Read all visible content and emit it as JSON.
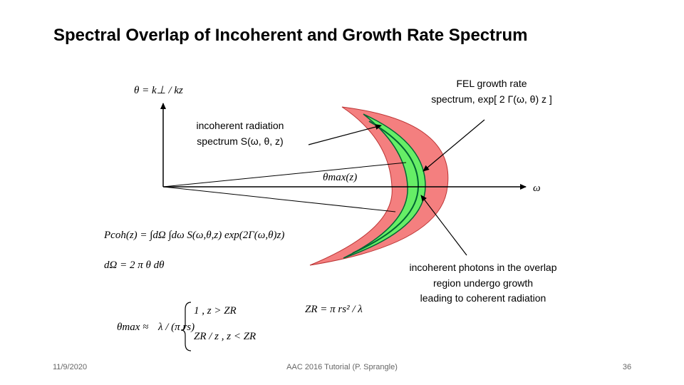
{
  "title": "Spectral Overlap of Incoherent and Growth Rate Spectrum",
  "diagram": {
    "axis_y_label": "θ = k⊥ / kz",
    "axis_x_label": "ω",
    "theta_max_label": "θmax(z)",
    "growth_annotation": [
      "FEL growth rate",
      "spectrum, exp[ 2 Γ(ω, θ) z ]"
    ],
    "incoherent_annotation": [
      "incoherent radiation",
      "spectrum S(ω, θ, z)"
    ],
    "overlap_annotation": [
      "incoherent photons in the overlap",
      "region undergo growth",
      "leading to coherent radiation"
    ]
  },
  "equations": {
    "pcoh": "Pcoh(z) = ∫dΩ ∫dω S(ω,θ,z) exp(2Γ(ω,θ)z)",
    "domega": "dΩ  =  2 π θ dθ",
    "zr": "ZR = π rs² / λ",
    "theta_max": {
      "lhs": "θmax  ≈",
      "factor": "λ / (π rs)",
      "case1": "1  ,  z > ZR",
      "case2": "ZR / z  ,  z < ZR"
    }
  },
  "footer": {
    "date": "11/9/2020",
    "center": "AAC 2016 Tutorial (P. Sprangle)",
    "page": "36"
  }
}
